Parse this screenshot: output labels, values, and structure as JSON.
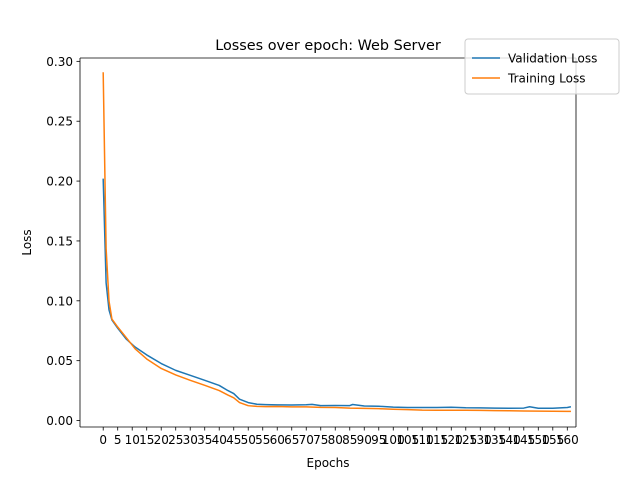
{
  "chart_data": {
    "type": "line",
    "title": "Losses over epoch: Web Server",
    "xlabel": "Epochs",
    "ylabel": "Loss",
    "xlim": [
      -8,
      163
    ],
    "ylim": [
      -0.0054,
      0.3028
    ],
    "x_ticks": [
      0,
      5,
      10,
      15,
      20,
      25,
      30,
      35,
      40,
      45,
      50,
      55,
      60,
      65,
      70,
      75,
      80,
      85,
      90,
      95,
      100,
      105,
      110,
      115,
      120,
      125,
      130,
      135,
      140,
      145,
      150,
      155,
      160
    ],
    "y_ticks": [
      0.0,
      0.05,
      0.1,
      0.15,
      0.2,
      0.25,
      0.3
    ],
    "y_tick_labels": [
      "0.00",
      "0.05",
      "0.10",
      "0.15",
      "0.20",
      "0.25",
      "0.30"
    ],
    "legend_position": "top-right",
    "grid": false,
    "series": [
      {
        "name": "Validation Loss",
        "color": "#1f77b4",
        "points": [
          [
            0,
            0.2014
          ],
          [
            1,
            0.115
          ],
          [
            2,
            0.0924
          ],
          [
            3,
            0.084
          ],
          [
            5,
            0.0771
          ],
          [
            8,
            0.0679
          ],
          [
            11,
            0.0614
          ],
          [
            15,
            0.0548
          ],
          [
            20,
            0.0476
          ],
          [
            25,
            0.0419
          ],
          [
            30,
            0.0378
          ],
          [
            35,
            0.0336
          ],
          [
            40,
            0.0293
          ],
          [
            43,
            0.025
          ],
          [
            45,
            0.0225
          ],
          [
            47,
            0.0178
          ],
          [
            50,
            0.015
          ],
          [
            53,
            0.0136
          ],
          [
            56,
            0.0133
          ],
          [
            60,
            0.0131
          ],
          [
            65,
            0.013
          ],
          [
            70,
            0.0132
          ],
          [
            72,
            0.0135
          ],
          [
            75,
            0.0125
          ],
          [
            80,
            0.0126
          ],
          [
            85,
            0.0125
          ],
          [
            86,
            0.0134
          ],
          [
            90,
            0.0121
          ],
          [
            95,
            0.0119
          ],
          [
            100,
            0.0112
          ],
          [
            105,
            0.0109
          ],
          [
            110,
            0.0109
          ],
          [
            115,
            0.0109
          ],
          [
            120,
            0.0111
          ],
          [
            125,
            0.0107
          ],
          [
            130,
            0.0106
          ],
          [
            135,
            0.0104
          ],
          [
            140,
            0.0103
          ],
          [
            145,
            0.0104
          ],
          [
            147,
            0.0115
          ],
          [
            150,
            0.0103
          ],
          [
            155,
            0.0103
          ],
          [
            160,
            0.0109
          ],
          [
            161,
            0.0114
          ]
        ]
      },
      {
        "name": "Training Loss",
        "color": "#ff7f0e",
        "points": [
          [
            0,
            0.2903
          ],
          [
            1,
            0.1437
          ],
          [
            2,
            0.0997
          ],
          [
            3,
            0.0848
          ],
          [
            5,
            0.0781
          ],
          [
            8,
            0.0691
          ],
          [
            11,
            0.0599
          ],
          [
            15,
            0.0514
          ],
          [
            20,
            0.0435
          ],
          [
            25,
            0.0381
          ],
          [
            30,
            0.0336
          ],
          [
            35,
            0.0294
          ],
          [
            40,
            0.025
          ],
          [
            43,
            0.0213
          ],
          [
            45,
            0.019
          ],
          [
            47,
            0.015
          ],
          [
            50,
            0.0124
          ],
          [
            53,
            0.0118
          ],
          [
            56,
            0.0116
          ],
          [
            60,
            0.0117
          ],
          [
            65,
            0.0114
          ],
          [
            70,
            0.0114
          ],
          [
            75,
            0.011
          ],
          [
            80,
            0.0109
          ],
          [
            85,
            0.0104
          ],
          [
            90,
            0.0102
          ],
          [
            95,
            0.0099
          ],
          [
            100,
            0.0094
          ],
          [
            105,
            0.0091
          ],
          [
            110,
            0.0087
          ],
          [
            115,
            0.0086
          ],
          [
            120,
            0.0086
          ],
          [
            125,
            0.0086
          ],
          [
            130,
            0.0085
          ],
          [
            135,
            0.0083
          ],
          [
            140,
            0.0082
          ],
          [
            145,
            0.008
          ],
          [
            150,
            0.0079
          ],
          [
            155,
            0.0078
          ],
          [
            160,
            0.0077
          ],
          [
            161,
            0.0077
          ]
        ]
      }
    ]
  }
}
